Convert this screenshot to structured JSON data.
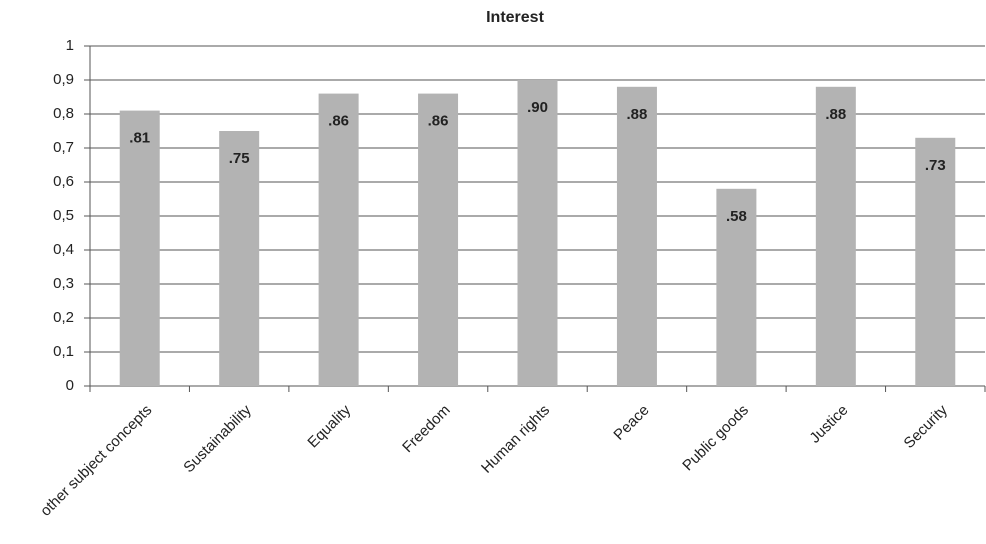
{
  "chart_data": {
    "type": "bar",
    "title": "Interest",
    "categories": [
      "other subject concepts",
      "Sustainability",
      "Equality",
      "Freedom",
      "Human rights",
      "Peace",
      "Public goods",
      "Justice",
      "Security"
    ],
    "values": [
      0.81,
      0.75,
      0.86,
      0.86,
      0.9,
      0.88,
      0.58,
      0.88,
      0.73
    ],
    "value_labels": [
      ".81",
      ".75",
      ".86",
      ".86",
      ".90",
      ".88",
      ".58",
      ".88",
      ".73"
    ],
    "color": "#b3b3b3",
    "ylim": [
      0,
      1
    ],
    "yticks": [
      0,
      {
        "value": 0.1,
        "label": "0,1"
      },
      {
        "value": 0.2,
        "label": "0,2"
      },
      {
        "value": 0.3,
        "label": "0,3"
      },
      {
        "value": 0.4,
        "label": "0,4"
      },
      {
        "value": 0.5,
        "label": "0,5"
      },
      {
        "value": 0.6,
        "label": "0,6"
      },
      {
        "value": 0.7,
        "label": "0,7"
      },
      {
        "value": 0.8,
        "label": "0,8"
      },
      {
        "value": 0.9,
        "label": "0,9"
      },
      1
    ],
    "grid": true
  }
}
